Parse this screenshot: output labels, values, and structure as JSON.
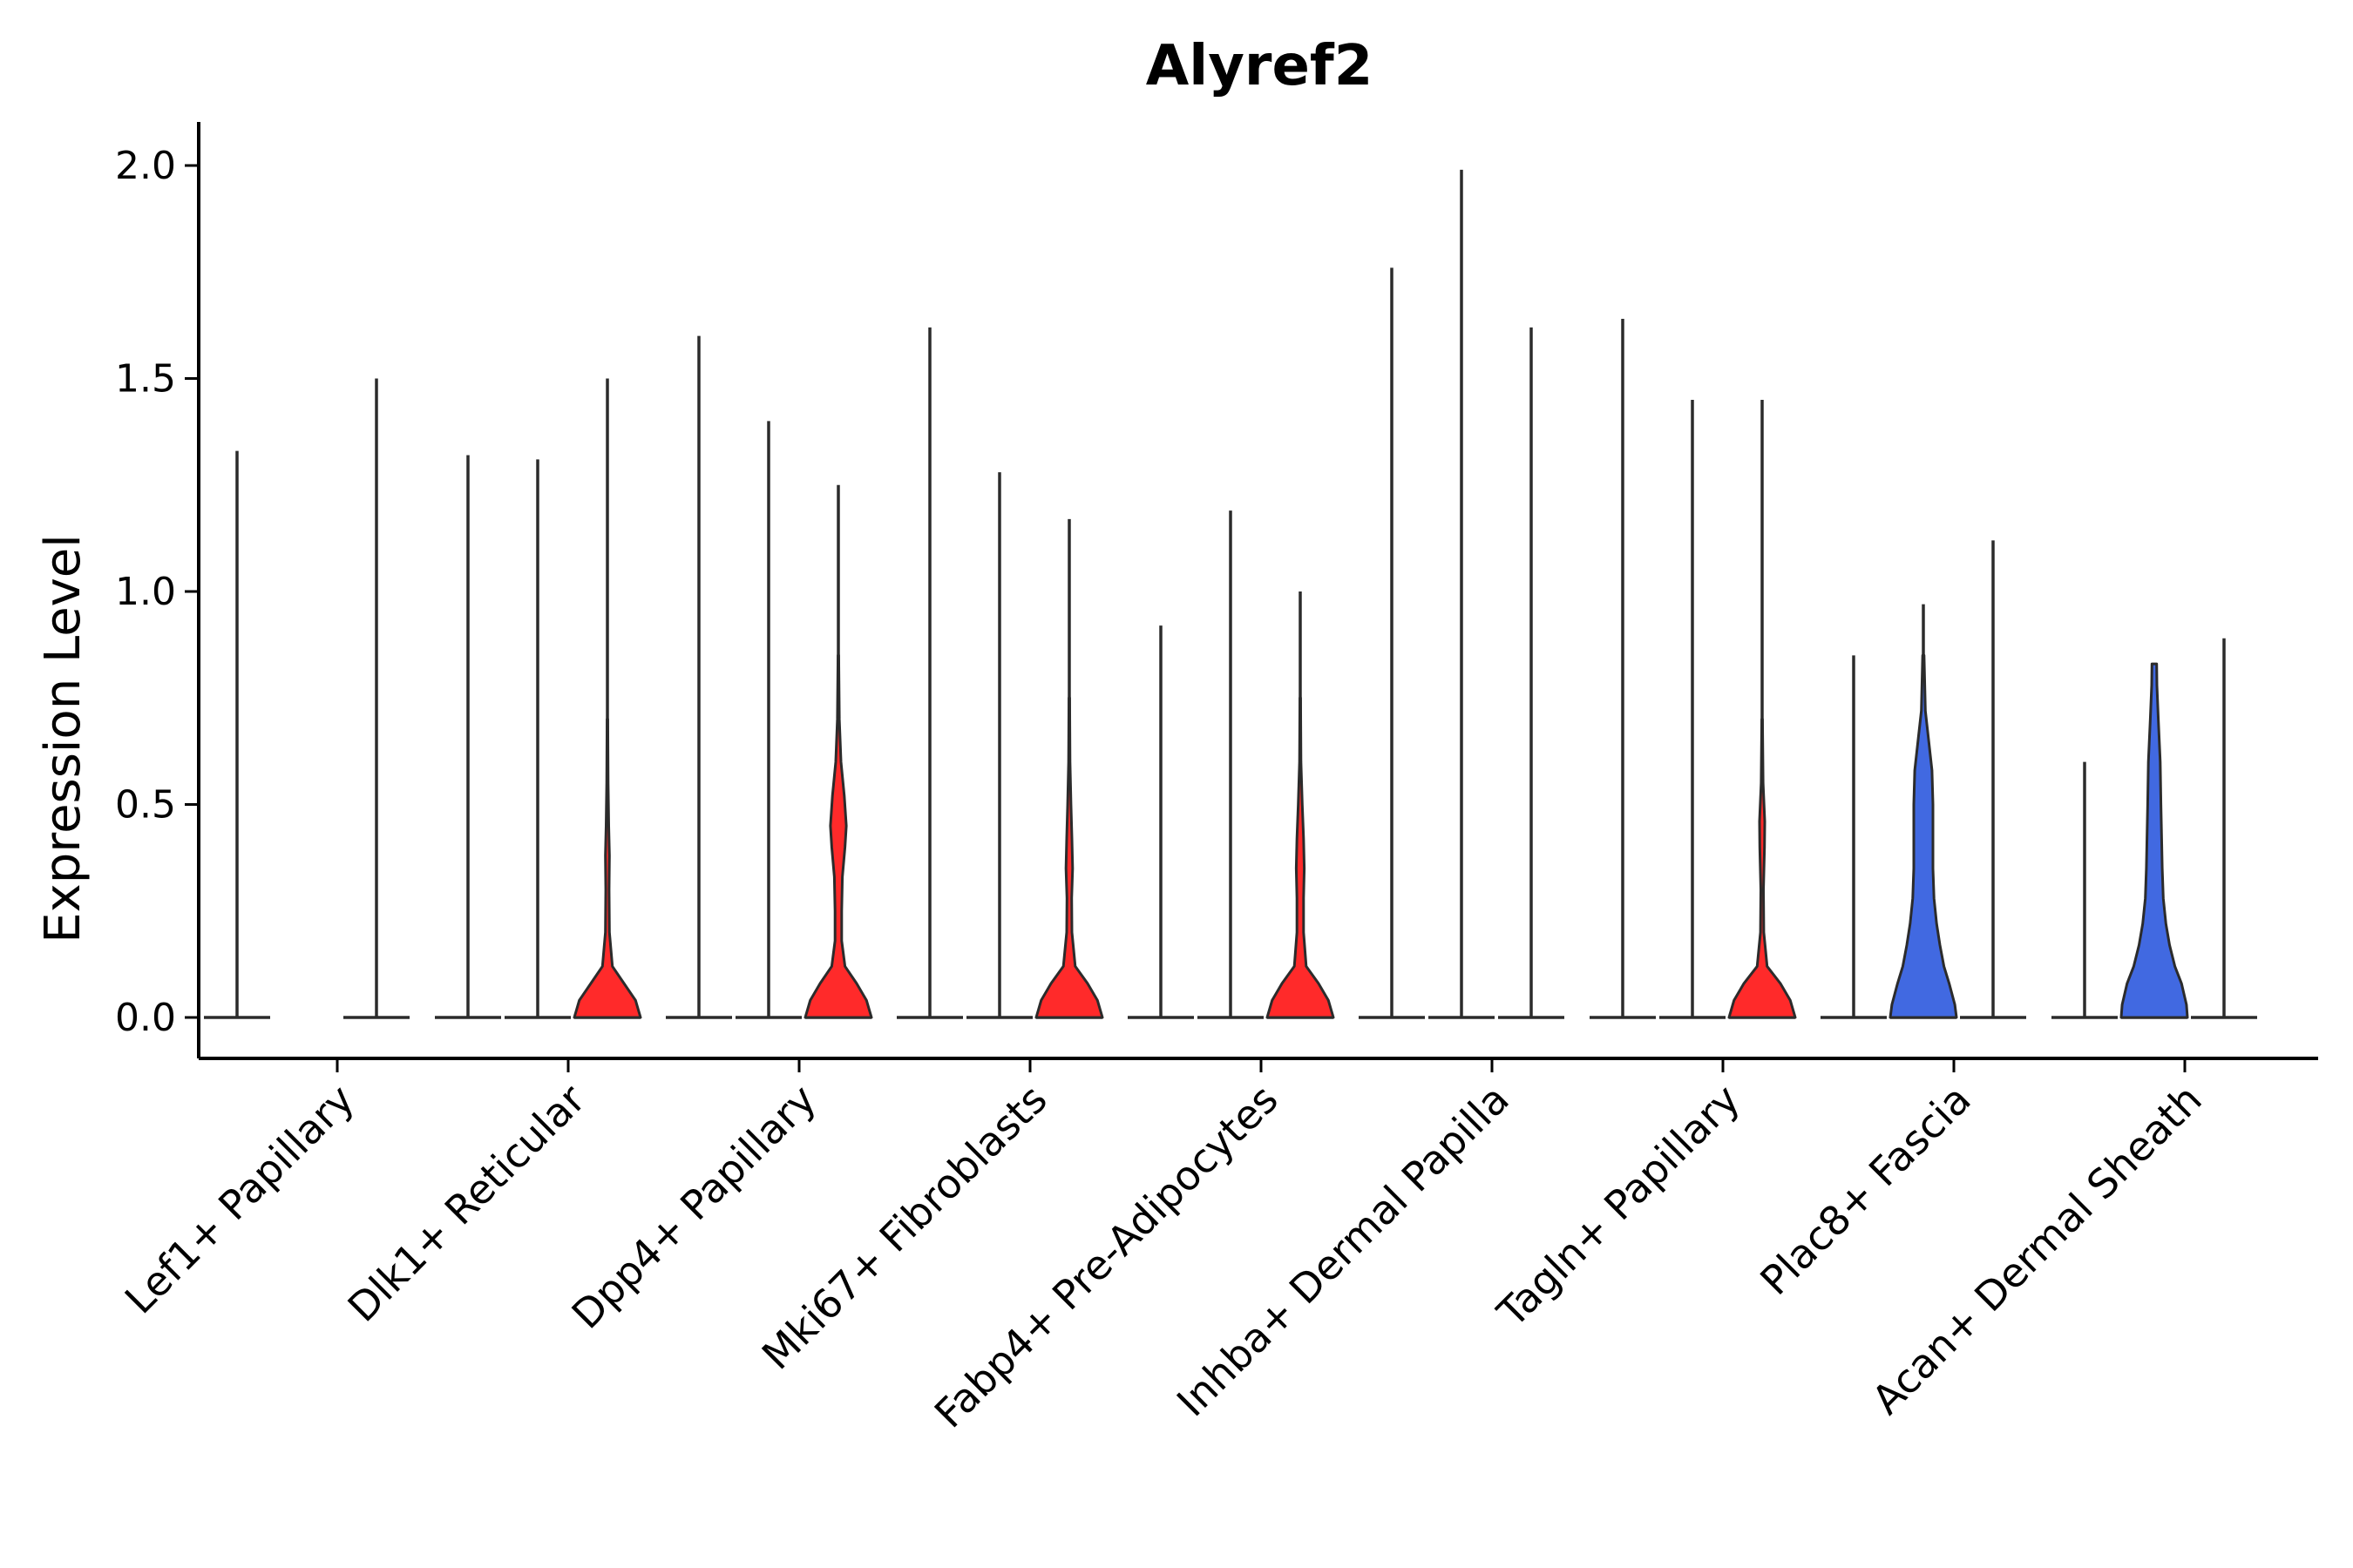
{
  "chart_data": {
    "type": "violin",
    "title": "Alyref2",
    "xlabel": "",
    "ylabel": "Expression Level",
    "ylim": [
      -0.1,
      2.1
    ],
    "yticks": [
      0.0,
      0.5,
      1.0,
      1.5,
      2.0
    ],
    "ytick_labels": [
      "0.0",
      "0.5",
      "1.0",
      "1.5",
      "2.0"
    ],
    "colors": {
      "red": "#ff2a2a",
      "blue": "#4169e1",
      "outline": "#2b2b2b"
    },
    "categories": [
      "Lef1+ Papillary",
      "Dlk1+ Reticular",
      "Dpp4+ Papillary",
      "Mki67+ Fibroblasts",
      "Fabp4+ Pre-Adipocytes",
      "Inhba+ Dermal Papilla",
      "Tagln+ Papillary",
      "Plac8+ Fascia",
      "Acan+ Dermal Sheath"
    ],
    "groups": [
      {
        "category": "Lef1+ Papillary",
        "violins": [
          {
            "position": "left",
            "max": 1.33,
            "fill": "none",
            "body": []
          },
          {
            "position": "right",
            "max": 1.5,
            "fill": "none",
            "body": []
          }
        ]
      },
      {
        "category": "Dlk1+ Reticular",
        "violins": [
          {
            "position": "left",
            "max": 1.32,
            "fill": "none",
            "body": []
          },
          {
            "position": "center",
            "max": 1.31,
            "fill": "none",
            "body": []
          },
          {
            "position": "right",
            "max": 1.5,
            "fill": "red",
            "body": [
              [
                0,
                1.0
              ],
              [
                0.04,
                0.85
              ],
              [
                0.08,
                0.5
              ],
              [
                0.12,
                0.15
              ],
              [
                0.2,
                0.06
              ],
              [
                0.3,
                0.05
              ],
              [
                0.38,
                0.06
              ],
              [
                0.45,
                0.04
              ],
              [
                0.55,
                0.02
              ],
              [
                0.7,
                0.01
              ]
            ]
          }
        ]
      },
      {
        "category": "Dpp4+ Papillary",
        "violins": [
          {
            "position": "left",
            "max": 1.6,
            "fill": "none",
            "body": []
          },
          {
            "position": "center",
            "max": 1.4,
            "fill": "none",
            "body": []
          },
          {
            "position": "right",
            "max": 1.25,
            "fill": "red",
            "body": [
              [
                0,
                1.0
              ],
              [
                0.04,
                0.85
              ],
              [
                0.08,
                0.55
              ],
              [
                0.12,
                0.2
              ],
              [
                0.18,
                0.1
              ],
              [
                0.25,
                0.1
              ],
              [
                0.33,
                0.12
              ],
              [
                0.4,
                0.2
              ],
              [
                0.45,
                0.24
              ],
              [
                0.52,
                0.18
              ],
              [
                0.6,
                0.08
              ],
              [
                0.7,
                0.03
              ],
              [
                0.85,
                0.01
              ]
            ]
          }
        ]
      },
      {
        "category": "Mki67+ Fibroblasts",
        "violins": [
          {
            "position": "left",
            "max": 1.62,
            "fill": "none",
            "body": []
          },
          {
            "position": "center",
            "max": 1.28,
            "fill": "none",
            "body": []
          },
          {
            "position": "right",
            "max": 1.17,
            "fill": "red",
            "body": [
              [
                0,
                1.0
              ],
              [
                0.04,
                0.85
              ],
              [
                0.08,
                0.55
              ],
              [
                0.12,
                0.18
              ],
              [
                0.2,
                0.08
              ],
              [
                0.28,
                0.07
              ],
              [
                0.35,
                0.1
              ],
              [
                0.42,
                0.08
              ],
              [
                0.5,
                0.05
              ],
              [
                0.6,
                0.02
              ],
              [
                0.75,
                0.01
              ]
            ]
          }
        ]
      },
      {
        "category": "Fabp4+ Pre-Adipocytes",
        "violins": [
          {
            "position": "left",
            "max": 0.92,
            "fill": "none",
            "body": []
          },
          {
            "position": "center",
            "max": 1.19,
            "fill": "none",
            "body": []
          },
          {
            "position": "right",
            "max": 1.0,
            "fill": "red",
            "body": [
              [
                0,
                1.0
              ],
              [
                0.04,
                0.85
              ],
              [
                0.08,
                0.55
              ],
              [
                0.12,
                0.18
              ],
              [
                0.2,
                0.1
              ],
              [
                0.28,
                0.1
              ],
              [
                0.35,
                0.12
              ],
              [
                0.42,
                0.1
              ],
              [
                0.5,
                0.06
              ],
              [
                0.6,
                0.02
              ],
              [
                0.75,
                0.01
              ]
            ]
          }
        ]
      },
      {
        "category": "Inhba+ Dermal Papilla",
        "violins": [
          {
            "position": "left",
            "max": 1.76,
            "fill": "none",
            "body": []
          },
          {
            "position": "center",
            "max": 1.99,
            "fill": "none",
            "body": []
          },
          {
            "position": "right",
            "max": 1.62,
            "fill": "none",
            "body": []
          }
        ]
      },
      {
        "category": "Tagln+ Papillary",
        "violins": [
          {
            "position": "left",
            "max": 1.64,
            "fill": "none",
            "body": []
          },
          {
            "position": "center",
            "max": 1.45,
            "fill": "none",
            "body": []
          },
          {
            "position": "right",
            "max": 1.45,
            "fill": "red",
            "body": [
              [
                0,
                1.0
              ],
              [
                0.04,
                0.85
              ],
              [
                0.08,
                0.55
              ],
              [
                0.12,
                0.15
              ],
              [
                0.2,
                0.05
              ],
              [
                0.3,
                0.04
              ],
              [
                0.4,
                0.07
              ],
              [
                0.46,
                0.08
              ],
              [
                0.55,
                0.03
              ],
              [
                0.7,
                0.01
              ]
            ]
          }
        ]
      },
      {
        "category": "Plac8+ Fascia",
        "violins": [
          {
            "position": "left",
            "max": 0.85,
            "fill": "none",
            "body": []
          },
          {
            "position": "center",
            "max": 0.97,
            "fill": "blue",
            "body": [
              [
                0,
                1.0
              ],
              [
                0.03,
                0.95
              ],
              [
                0.08,
                0.78
              ],
              [
                0.12,
                0.62
              ],
              [
                0.17,
                0.5
              ],
              [
                0.22,
                0.4
              ],
              [
                0.28,
                0.32
              ],
              [
                0.35,
                0.29
              ],
              [
                0.42,
                0.29
              ],
              [
                0.5,
                0.29
              ],
              [
                0.58,
                0.26
              ],
              [
                0.65,
                0.16
              ],
              [
                0.72,
                0.06
              ],
              [
                0.85,
                0.02
              ]
            ]
          },
          {
            "position": "right",
            "max": 1.12,
            "fill": "none",
            "body": []
          }
        ]
      },
      {
        "category": "Acan+ Dermal Sheath",
        "violins": [
          {
            "position": "left",
            "max": 0.6,
            "fill": "none",
            "body": []
          },
          {
            "position": "center",
            "max": 0.83,
            "fill": "blue",
            "body": [
              [
                0,
                1.0
              ],
              [
                0.03,
                0.97
              ],
              [
                0.08,
                0.82
              ],
              [
                0.12,
                0.62
              ],
              [
                0.17,
                0.46
              ],
              [
                0.22,
                0.35
              ],
              [
                0.28,
                0.27
              ],
              [
                0.35,
                0.24
              ],
              [
                0.42,
                0.22
              ],
              [
                0.5,
                0.2
              ],
              [
                0.6,
                0.18
              ],
              [
                0.7,
                0.12
              ],
              [
                0.78,
                0.08
              ],
              [
                0.83,
                0.07
              ]
            ]
          },
          {
            "position": "right",
            "max": 0.89,
            "fill": "none",
            "body": []
          }
        ]
      }
    ]
  }
}
